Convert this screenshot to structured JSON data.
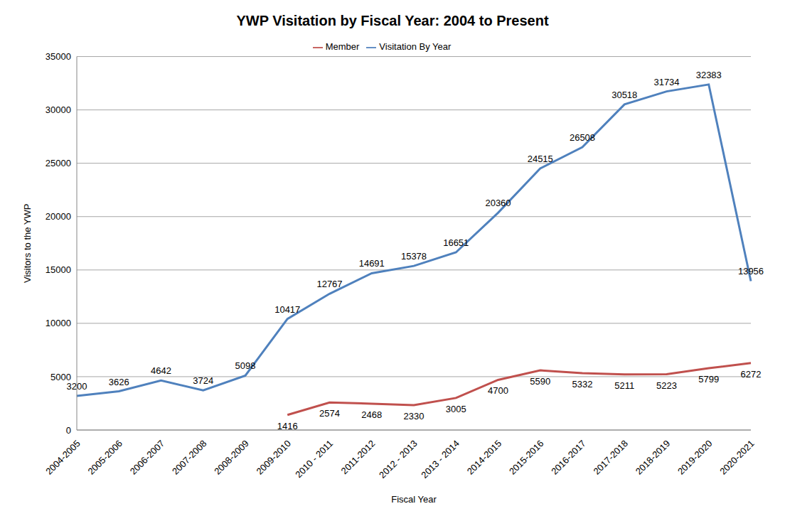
{
  "chart_data": {
    "type": "line",
    "title": "YWP Visitation by Fiscal Year: 2004 to Present",
    "x_label": "Fiscal Year",
    "y_label": "Visitors to the YWP",
    "categories": [
      "2004-2005",
      "2005-2006",
      "2006-2007",
      "2007-2008",
      "2008-2009",
      "2009-2010",
      "2010 - 2011",
      "2011-2012",
      "2012 - 2013",
      "2013 - 2014",
      "2014-2015",
      "2015-2016",
      "2016-2017",
      "2017-2018",
      "2018-2019",
      "2019-2020",
      "2020-2021"
    ],
    "series": [
      {
        "name": "Visitation By Year",
        "color": "#4f81bd",
        "values": [
          3200,
          3626,
          4642,
          3724,
          5098,
          10417,
          12767,
          14691,
          15378,
          16651,
          20360,
          24515,
          26508,
          30518,
          31734,
          32383,
          13956
        ]
      },
      {
        "name": "Member",
        "color": "#c0504d",
        "values": [
          null,
          null,
          null,
          null,
          null,
          1416,
          2574,
          2468,
          2330,
          3005,
          4700,
          5590,
          5332,
          5211,
          5223,
          5799,
          6272
        ]
      }
    ],
    "ylim": [
      0,
      35000
    ],
    "yticks": [
      0,
      5000,
      10000,
      15000,
      20000,
      25000,
      30000,
      35000
    ],
    "grid": true,
    "legend": "top",
    "data_labels": true
  }
}
